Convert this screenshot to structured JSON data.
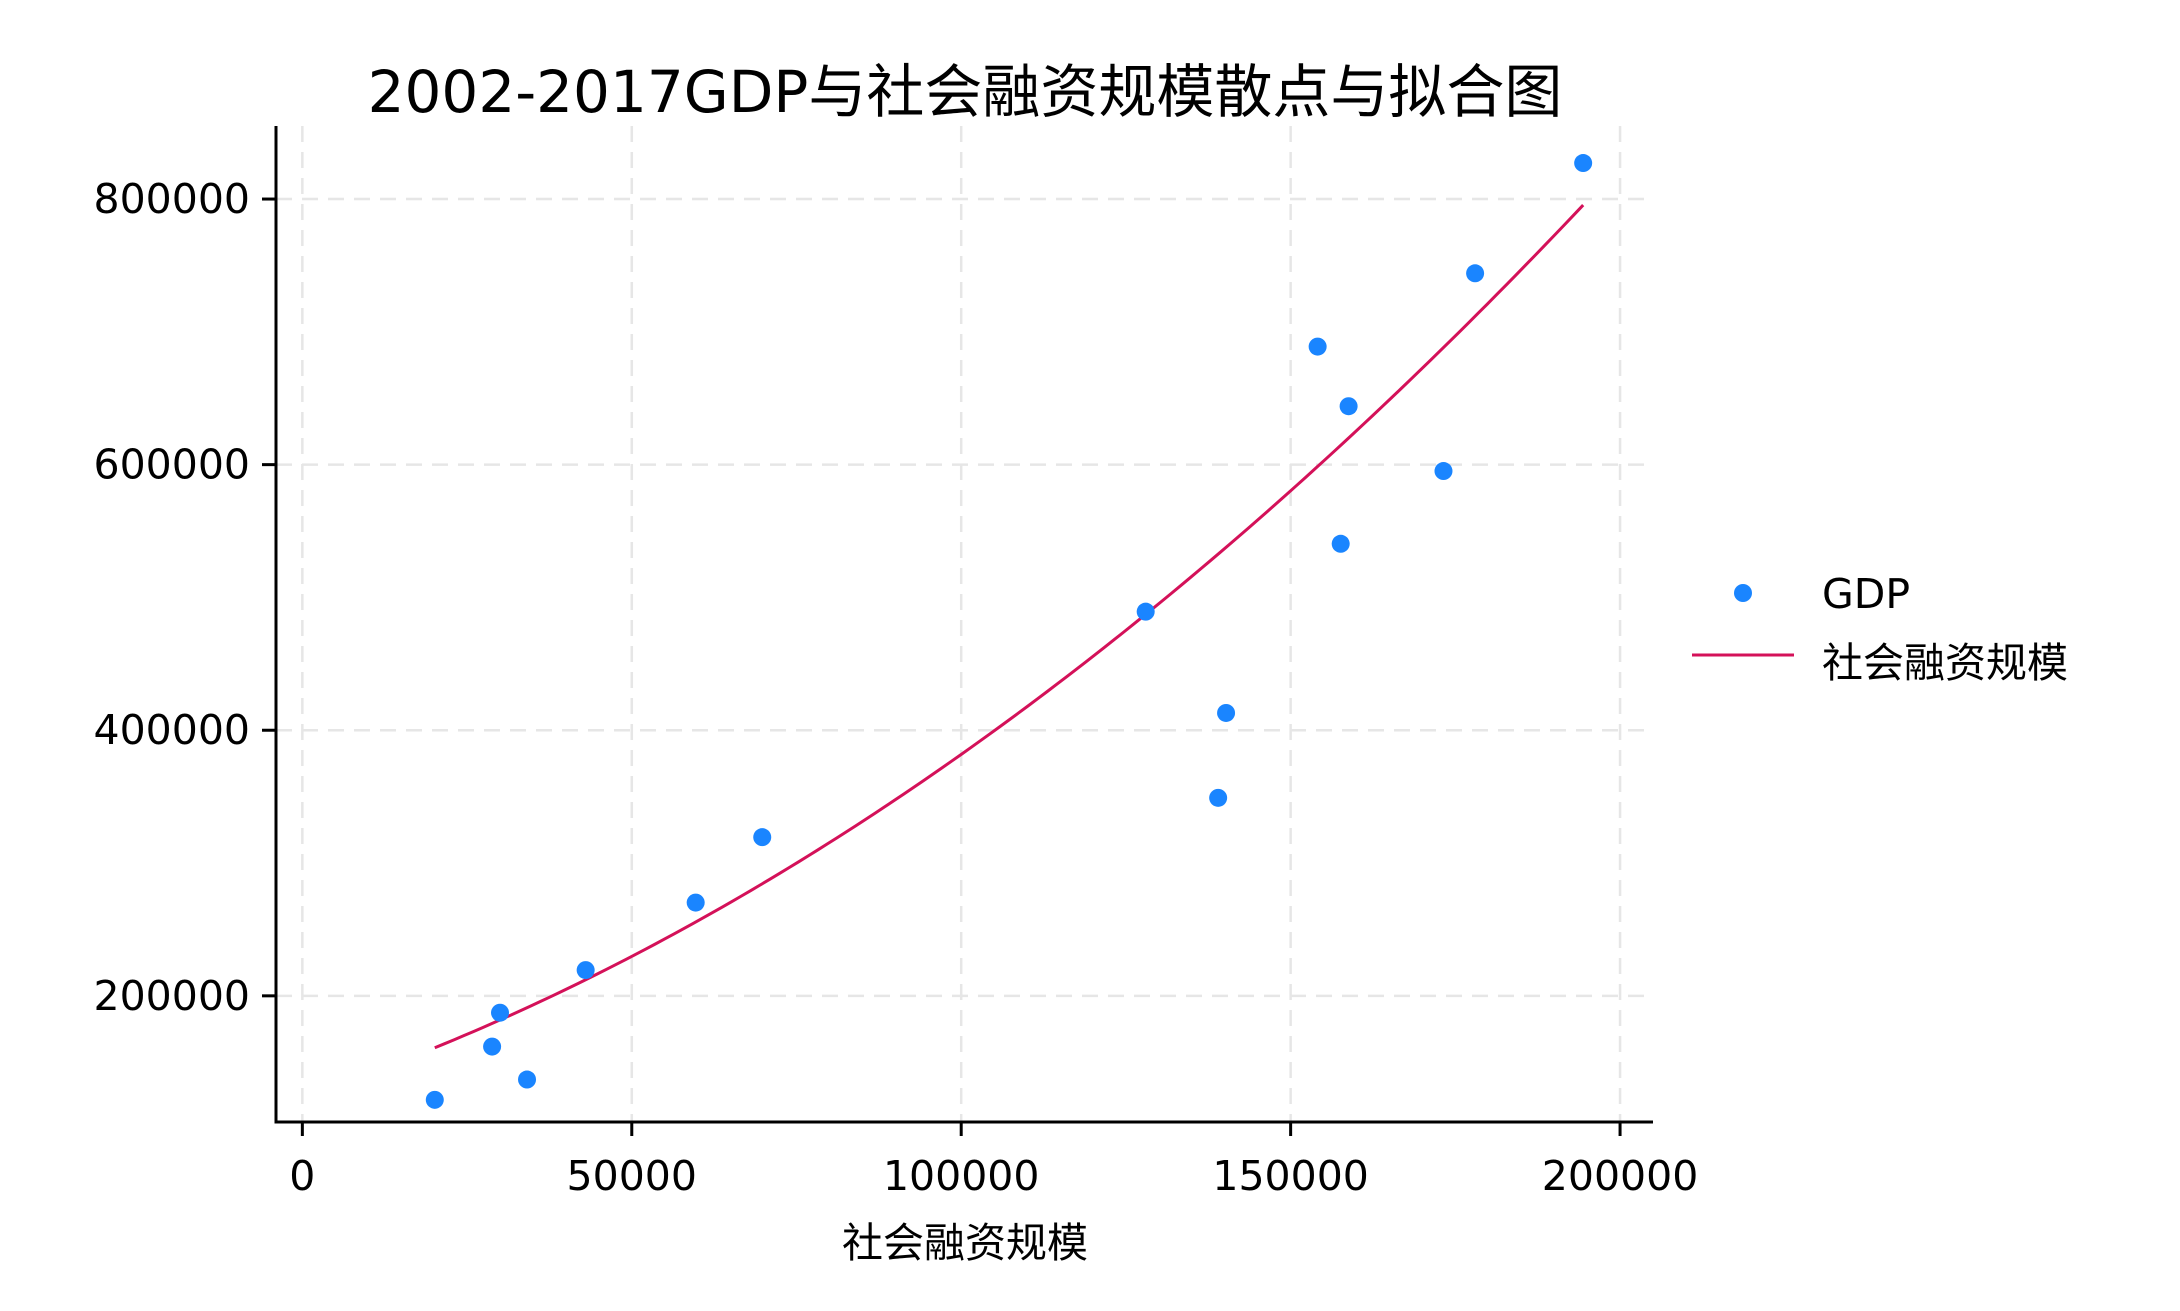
{
  "chart_data": {
    "type": "scatter",
    "title": "2002-2017GDP与社会融资规模散点与拟合图",
    "xlabel": "社会融资规模",
    "ylabel": "",
    "xlim": [
      -4000,
      205000
    ],
    "ylim": [
      105000,
      855000
    ],
    "x_ticks": [
      0,
      50000,
      100000,
      150000,
      200000
    ],
    "y_ticks": [
      200000,
      400000,
      600000,
      800000
    ],
    "x_tick_labels": [
      "0",
      "50000",
      "100000",
      "150000",
      "200000"
    ],
    "y_tick_labels": [
      "200000",
      "400000",
      "600000",
      "800000"
    ],
    "grid": true,
    "legend_position": "right",
    "series": [
      {
        "name": "GDP",
        "type": "scatter",
        "color": "#1a85ff",
        "points": [
          {
            "x": 20100,
            "y": 121700
          },
          {
            "x": 28800,
            "y": 161800
          },
          {
            "x": 30000,
            "y": 187300
          },
          {
            "x": 34100,
            "y": 137000
          },
          {
            "x": 43000,
            "y": 219400
          },
          {
            "x": 59700,
            "y": 270200
          },
          {
            "x": 69800,
            "y": 319500
          },
          {
            "x": 128000,
            "y": 489300
          },
          {
            "x": 139000,
            "y": 349100
          },
          {
            "x": 140200,
            "y": 413000
          },
          {
            "x": 154100,
            "y": 688900
          },
          {
            "x": 157600,
            "y": 540400
          },
          {
            "x": 158800,
            "y": 644000
          },
          {
            "x": 173200,
            "y": 595200
          },
          {
            "x": 178000,
            "y": 744100
          },
          {
            "x": 194400,
            "y": 827100
          }
        ]
      },
      {
        "name": "社会融资规模",
        "type": "line",
        "color": "#d41159",
        "fit": {
          "model": "quadratic",
          "coefficients": [
            124000,
            1.65,
            9.28e-06
          ]
        },
        "x_range": [
          20100,
          194400
        ]
      }
    ]
  }
}
